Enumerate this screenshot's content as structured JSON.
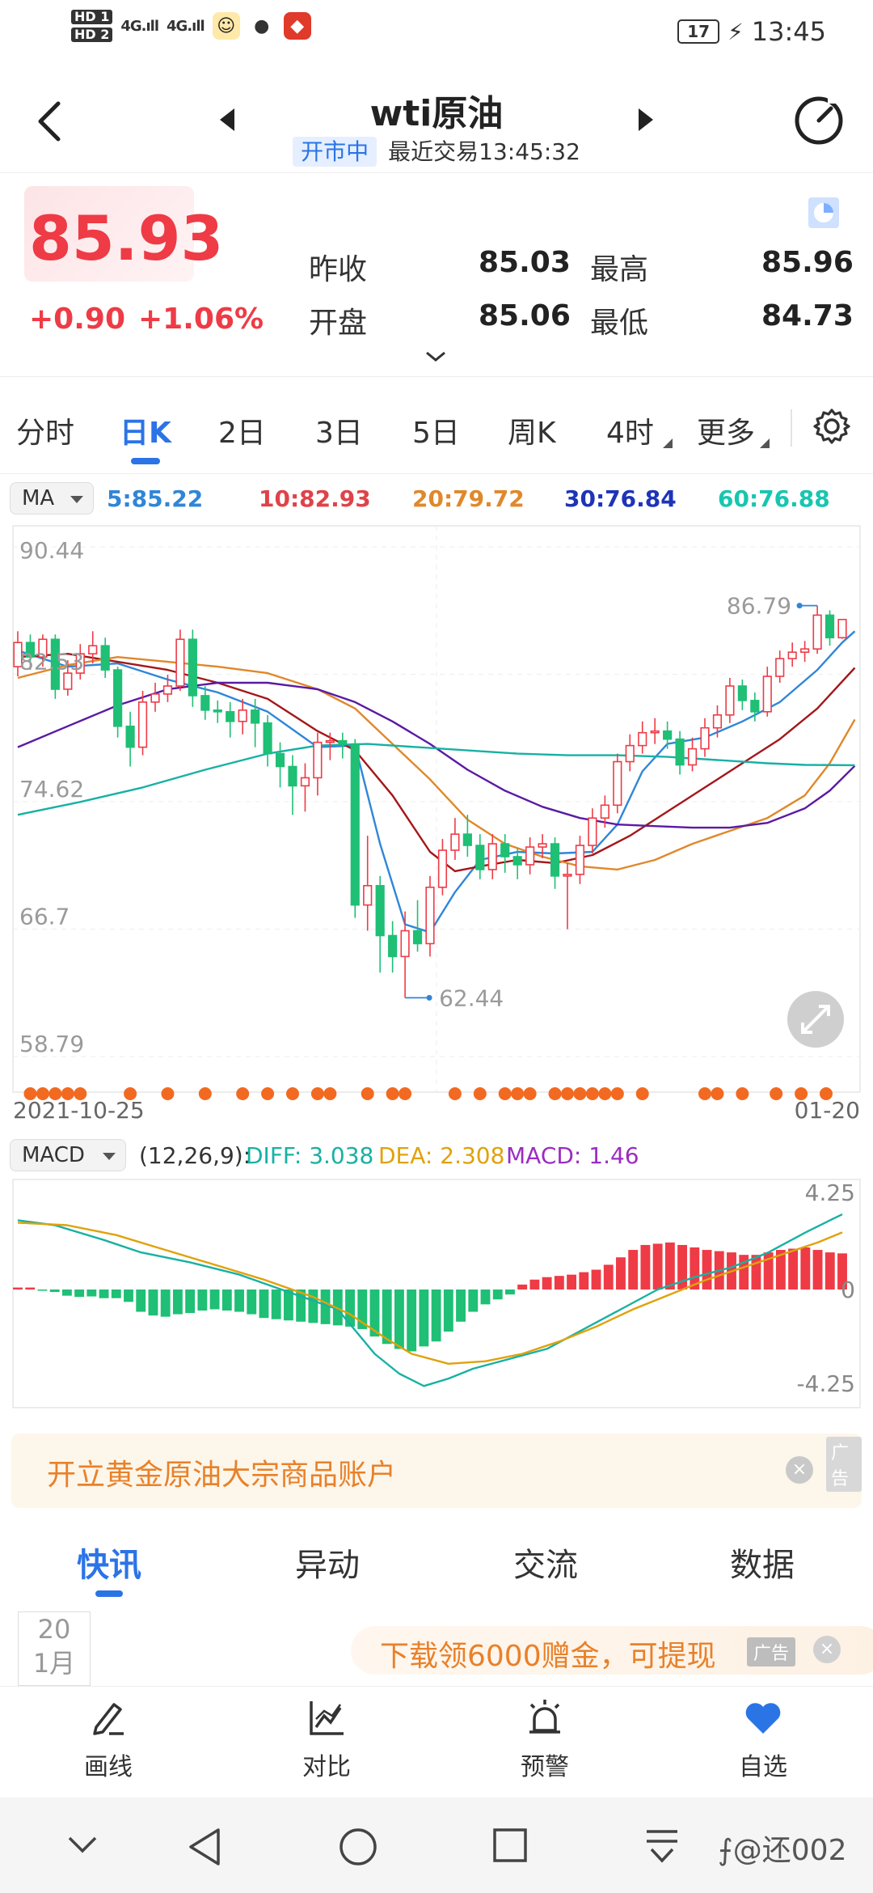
{
  "status_bar": {
    "sim1": "HD 1",
    "sim2": "HD 2",
    "signal1": "4G.ıll",
    "signal2": "4G.ıll",
    "battery": "17",
    "time": "13:45"
  },
  "header": {
    "title": "wti原油",
    "market_status": "开市中",
    "last_trade": "最近交易13:45:32"
  },
  "quote": {
    "price": "85.93",
    "change": "+0.90",
    "change_pct": "+1.06%",
    "prev_close_label": "昨收",
    "prev_close": "85.03",
    "high_label": "最高",
    "high": "85.96",
    "open_label": "开盘",
    "open": "85.06",
    "low_label": "最低",
    "low": "84.73"
  },
  "periods": [
    "分时",
    "日K",
    "2日",
    "3日",
    "5日",
    "周K",
    "4时",
    "更多"
  ],
  "active_period": "日K",
  "ma": {
    "selector": "MA",
    "ma5": "5:85.22",
    "ma10": "10:82.93",
    "ma20": "20:79.72",
    "ma30": "30:76.84",
    "ma60": "60:76.88"
  },
  "colors": {
    "up": "#ee3b46",
    "down": "#1fbf75",
    "ma5": "#2f86d8",
    "ma10": "#a3171a",
    "ma20": "#e0882a",
    "ma30": "#5a1aa3",
    "ma60": "#17b1a3",
    "accent": "#2b74e6",
    "event_dot": "#f26a21"
  },
  "chart_data": [
    {
      "type": "candlestick",
      "y_ticks": [
        "90.44",
        "82.53",
        "74.62",
        "66.7",
        "58.79"
      ],
      "ylim": [
        58.79,
        90.44
      ],
      "x_start": "2021-10-25",
      "x_end": "01-20",
      "max_label": "86.79",
      "min_label": "62.44",
      "candles": [
        {
          "o": 83.0,
          "c": 84.5,
          "h": 85.2,
          "l": 82.4
        },
        {
          "o": 84.5,
          "c": 83.6,
          "h": 85.0,
          "l": 82.8
        },
        {
          "o": 83.6,
          "c": 84.7,
          "h": 85.0,
          "l": 83.0
        },
        {
          "o": 84.7,
          "c": 81.6,
          "h": 85.0,
          "l": 81.0
        },
        {
          "o": 81.6,
          "c": 82.6,
          "h": 83.4,
          "l": 81.2
        },
        {
          "o": 82.6,
          "c": 83.8,
          "h": 84.4,
          "l": 82.2
        },
        {
          "o": 83.8,
          "c": 84.3,
          "h": 85.2,
          "l": 83.2
        },
        {
          "o": 84.3,
          "c": 82.8,
          "h": 84.8,
          "l": 82.3
        },
        {
          "o": 82.8,
          "c": 79.3,
          "h": 83.0,
          "l": 78.6
        },
        {
          "o": 79.3,
          "c": 78.0,
          "h": 80.2,
          "l": 76.8
        },
        {
          "o": 78.0,
          "c": 80.8,
          "h": 81.5,
          "l": 77.5
        },
        {
          "o": 80.8,
          "c": 81.3,
          "h": 82.0,
          "l": 80.2
        },
        {
          "o": 81.3,
          "c": 81.8,
          "h": 82.5,
          "l": 80.8
        },
        {
          "o": 81.8,
          "c": 84.7,
          "h": 85.3,
          "l": 81.5
        },
        {
          "o": 84.7,
          "c": 81.2,
          "h": 85.3,
          "l": 80.5
        },
        {
          "o": 81.2,
          "c": 80.3,
          "h": 81.8,
          "l": 79.7
        },
        {
          "o": 80.3,
          "c": 80.2,
          "h": 80.9,
          "l": 79.5
        },
        {
          "o": 80.2,
          "c": 79.6,
          "h": 80.8,
          "l": 78.6
        },
        {
          "o": 79.6,
          "c": 80.3,
          "h": 81.0,
          "l": 78.8
        },
        {
          "o": 80.3,
          "c": 79.5,
          "h": 81.0,
          "l": 78.0
        },
        {
          "o": 79.5,
          "c": 77.6,
          "h": 80.0,
          "l": 76.8
        },
        {
          "o": 77.6,
          "c": 76.8,
          "h": 78.3,
          "l": 75.5
        },
        {
          "o": 76.8,
          "c": 75.6,
          "h": 77.5,
          "l": 73.8
        },
        {
          "o": 75.6,
          "c": 76.1,
          "h": 77.0,
          "l": 74.0
        },
        {
          "o": 76.1,
          "c": 78.3,
          "h": 78.9,
          "l": 75.0
        },
        {
          "o": 78.3,
          "c": 78.4,
          "h": 78.9,
          "l": 77.2
        },
        {
          "o": 78.4,
          "c": 78.2,
          "h": 78.9,
          "l": 77.3
        },
        {
          "o": 78.2,
          "c": 68.2,
          "h": 78.5,
          "l": 67.4
        },
        {
          "o": 68.2,
          "c": 69.4,
          "h": 72.5,
          "l": 66.6
        },
        {
          "o": 69.4,
          "c": 66.3,
          "h": 70.0,
          "l": 64.0
        },
        {
          "o": 66.3,
          "c": 65.0,
          "h": 67.2,
          "l": 64.0
        },
        {
          "o": 65.0,
          "c": 66.6,
          "h": 67.8,
          "l": 62.44
        },
        {
          "o": 66.6,
          "c": 65.8,
          "h": 68.5,
          "l": 65.3
        },
        {
          "o": 65.8,
          "c": 69.3,
          "h": 70.0,
          "l": 65.0
        },
        {
          "o": 69.3,
          "c": 71.6,
          "h": 72.3,
          "l": 68.8
        },
        {
          "o": 71.6,
          "c": 72.6,
          "h": 73.6,
          "l": 71.0
        },
        {
          "o": 72.6,
          "c": 71.9,
          "h": 73.8,
          "l": 71.2
        },
        {
          "o": 71.9,
          "c": 70.4,
          "h": 72.6,
          "l": 69.8
        },
        {
          "o": 70.4,
          "c": 72.0,
          "h": 72.6,
          "l": 69.8
        },
        {
          "o": 72.0,
          "c": 71.2,
          "h": 72.6,
          "l": 70.2
        },
        {
          "o": 71.2,
          "c": 70.7,
          "h": 71.7,
          "l": 69.8
        },
        {
          "o": 70.7,
          "c": 71.8,
          "h": 72.4,
          "l": 70.1
        },
        {
          "o": 71.8,
          "c": 72.0,
          "h": 72.6,
          "l": 71.1
        },
        {
          "o": 72.0,
          "c": 70.0,
          "h": 72.4,
          "l": 69.2
        },
        {
          "o": 70.0,
          "c": 70.1,
          "h": 70.8,
          "l": 66.7
        },
        {
          "o": 70.1,
          "c": 71.9,
          "h": 72.5,
          "l": 69.5
        },
        {
          "o": 71.9,
          "c": 73.6,
          "h": 74.2,
          "l": 71.4
        },
        {
          "o": 73.6,
          "c": 74.4,
          "h": 75.0,
          "l": 73.0
        },
        {
          "o": 74.4,
          "c": 77.1,
          "h": 77.6,
          "l": 73.9
        },
        {
          "o": 77.1,
          "c": 78.1,
          "h": 78.8,
          "l": 76.5
        },
        {
          "o": 78.1,
          "c": 78.9,
          "h": 79.6,
          "l": 77.6
        },
        {
          "o": 78.9,
          "c": 79.0,
          "h": 79.8,
          "l": 78.2
        },
        {
          "o": 79.0,
          "c": 78.5,
          "h": 79.6,
          "l": 77.9
        },
        {
          "o": 78.5,
          "c": 76.9,
          "h": 79.0,
          "l": 76.3
        },
        {
          "o": 76.9,
          "c": 77.9,
          "h": 78.6,
          "l": 76.5
        },
        {
          "o": 77.9,
          "c": 79.2,
          "h": 79.8,
          "l": 77.4
        },
        {
          "o": 79.2,
          "c": 80.0,
          "h": 80.6,
          "l": 78.6
        },
        {
          "o": 80.0,
          "c": 81.8,
          "h": 82.3,
          "l": 79.5
        },
        {
          "o": 81.8,
          "c": 80.9,
          "h": 82.2,
          "l": 80.3
        },
        {
          "o": 80.9,
          "c": 80.2,
          "h": 81.4,
          "l": 79.6
        },
        {
          "o": 80.2,
          "c": 82.4,
          "h": 83.0,
          "l": 79.9
        },
        {
          "o": 82.4,
          "c": 83.5,
          "h": 84.0,
          "l": 82.0
        },
        {
          "o": 83.5,
          "c": 83.9,
          "h": 84.5,
          "l": 83.0
        },
        {
          "o": 83.9,
          "c": 84.1,
          "h": 84.6,
          "l": 83.3
        },
        {
          "o": 84.1,
          "c": 86.2,
          "h": 86.79,
          "l": 83.8
        },
        {
          "o": 86.2,
          "c": 84.8,
          "h": 86.5,
          "l": 84.3
        },
        {
          "o": 84.8,
          "c": 85.93,
          "h": 85.96,
          "l": 84.73
        }
      ],
      "ma_lines": {
        "ma5": [
          [
            0,
            84.0
          ],
          [
            4,
            83.0
          ],
          [
            8,
            83.2
          ],
          [
            12,
            82.2
          ],
          [
            16,
            81.4
          ],
          [
            20,
            80.2
          ],
          [
            24,
            78.0
          ],
          [
            27,
            78.1
          ],
          [
            29,
            72.0
          ],
          [
            31,
            67.0
          ],
          [
            33,
            66.5
          ],
          [
            35,
            69.0
          ],
          [
            37,
            71.0
          ],
          [
            40,
            71.5
          ],
          [
            43,
            71.4
          ],
          [
            46,
            71.5
          ],
          [
            48,
            73.2
          ],
          [
            50,
            76.5
          ],
          [
            52,
            78.2
          ],
          [
            55,
            78.6
          ],
          [
            58,
            79.6
          ],
          [
            61,
            80.8
          ],
          [
            64,
            82.8
          ],
          [
            66,
            84.5
          ],
          [
            67,
            85.2
          ]
        ],
        "ma10": [
          [
            0,
            83.6
          ],
          [
            4,
            83.8
          ],
          [
            8,
            83.3
          ],
          [
            12,
            82.8
          ],
          [
            16,
            82.0
          ],
          [
            20,
            81.0
          ],
          [
            24,
            79.0
          ],
          [
            27,
            77.8
          ],
          [
            30,
            75.0
          ],
          [
            33,
            71.5
          ],
          [
            35,
            70.3
          ],
          [
            37,
            70.6
          ],
          [
            40,
            71.0
          ],
          [
            43,
            70.8
          ],
          [
            46,
            71.3
          ],
          [
            49,
            72.5
          ],
          [
            52,
            74.0
          ],
          [
            55,
            75.5
          ],
          [
            58,
            77.0
          ],
          [
            61,
            78.5
          ],
          [
            64,
            80.4
          ],
          [
            67,
            82.93
          ]
        ],
        "ma20": [
          [
            0,
            82.3
          ],
          [
            4,
            83.1
          ],
          [
            8,
            83.6
          ],
          [
            12,
            83.3
          ],
          [
            16,
            83.0
          ],
          [
            20,
            82.6
          ],
          [
            24,
            81.6
          ],
          [
            27,
            80.4
          ],
          [
            30,
            78.2
          ],
          [
            33,
            76.0
          ],
          [
            36,
            73.5
          ],
          [
            39,
            72.0
          ],
          [
            42,
            71.2
          ],
          [
            45,
            70.6
          ],
          [
            48,
            70.4
          ],
          [
            51,
            71.0
          ],
          [
            54,
            72.0
          ],
          [
            57,
            72.8
          ],
          [
            60,
            73.6
          ],
          [
            63,
            75.0
          ],
          [
            65,
            77.0
          ],
          [
            67,
            79.72
          ]
        ],
        "ma30": [
          [
            0,
            78.0
          ],
          [
            4,
            79.3
          ],
          [
            8,
            80.6
          ],
          [
            12,
            81.6
          ],
          [
            16,
            82.0
          ],
          [
            20,
            82.0
          ],
          [
            24,
            81.6
          ],
          [
            27,
            80.8
          ],
          [
            30,
            79.6
          ],
          [
            33,
            78.2
          ],
          [
            36,
            76.6
          ],
          [
            39,
            75.3
          ],
          [
            42,
            74.3
          ],
          [
            45,
            73.6
          ],
          [
            48,
            73.2
          ],
          [
            51,
            73.1
          ],
          [
            54,
            73.0
          ],
          [
            57,
            73.0
          ],
          [
            60,
            73.3
          ],
          [
            63,
            74.2
          ],
          [
            65,
            75.3
          ],
          [
            67,
            76.84
          ]
        ],
        "ma60": [
          [
            0,
            73.8
          ],
          [
            5,
            74.6
          ],
          [
            10,
            75.5
          ],
          [
            15,
            76.6
          ],
          [
            20,
            77.6
          ],
          [
            24,
            78.1
          ],
          [
            28,
            78.2
          ],
          [
            32,
            78.0
          ],
          [
            36,
            77.8
          ],
          [
            40,
            77.6
          ],
          [
            44,
            77.5
          ],
          [
            48,
            77.5
          ],
          [
            52,
            77.4
          ],
          [
            56,
            77.2
          ],
          [
            60,
            77.0
          ],
          [
            63,
            76.9
          ],
          [
            67,
            76.88
          ]
        ]
      },
      "events": [
        1,
        2,
        3,
        4,
        5,
        9,
        12,
        15,
        18,
        20,
        22,
        24,
        25,
        28,
        30,
        31,
        35,
        37,
        39,
        40,
        41,
        43,
        44,
        45,
        46,
        47,
        48,
        50,
        55,
        56,
        58
      ]
    },
    {
      "type": "macd",
      "params": "(12,26,9):",
      "diff": "DIFF: 3.038",
      "dea": "DEA: 2.308",
      "macd": "MACD: 1.46",
      "y_ticks": [
        "4.25",
        "0",
        "-4.25"
      ],
      "ylim": [
        -4.25,
        4.25
      ],
      "histogram": [
        0.08,
        0.08,
        -0.05,
        -0.1,
        -0.25,
        -0.3,
        -0.28,
        -0.35,
        -0.35,
        -0.5,
        -0.9,
        -1.05,
        -1.1,
        -1.0,
        -0.95,
        -0.85,
        -0.8,
        -0.85,
        -0.9,
        -1.0,
        -1.15,
        -1.2,
        -1.25,
        -1.3,
        -1.35,
        -1.4,
        -1.45,
        -1.5,
        -1.6,
        -1.9,
        -2.2,
        -2.4,
        -2.5,
        -2.3,
        -2.1,
        -1.7,
        -1.3,
        -0.9,
        -0.6,
        -0.4,
        -0.2,
        0.2,
        0.4,
        0.5,
        0.55,
        0.6,
        0.7,
        0.8,
        1.0,
        1.3,
        1.6,
        1.8,
        1.85,
        1.9,
        1.8,
        1.7,
        1.6,
        1.55,
        1.5,
        1.4,
        1.4,
        1.5,
        1.6,
        1.65,
        1.7,
        1.6,
        1.5,
        1.46
      ],
      "diff_line": [
        [
          0,
          2.8
        ],
        [
          3,
          2.6
        ],
        [
          7,
          2.0
        ],
        [
          10,
          1.5
        ],
        [
          14,
          1.1
        ],
        [
          18,
          0.6
        ],
        [
          22,
          -0.1
        ],
        [
          26,
          -0.8
        ],
        [
          29,
          -2.6
        ],
        [
          31,
          -3.4
        ],
        [
          33,
          -3.9
        ],
        [
          35,
          -3.6
        ],
        [
          37,
          -3.2
        ],
        [
          40,
          -2.8
        ],
        [
          43,
          -2.4
        ],
        [
          46,
          -1.6
        ],
        [
          49,
          -0.8
        ],
        [
          52,
          0.0
        ],
        [
          55,
          0.5
        ],
        [
          58,
          0.9
        ],
        [
          61,
          1.5
        ],
        [
          64,
          2.3
        ],
        [
          66,
          2.8
        ],
        [
          67,
          3.038
        ]
      ],
      "dea_line": [
        [
          0,
          2.7
        ],
        [
          4,
          2.6
        ],
        [
          8,
          2.2
        ],
        [
          12,
          1.6
        ],
        [
          16,
          1.0
        ],
        [
          20,
          0.4
        ],
        [
          24,
          -0.3
        ],
        [
          27,
          -1.0
        ],
        [
          30,
          -2.0
        ],
        [
          32,
          -2.6
        ],
        [
          35,
          -3.0
        ],
        [
          38,
          -2.9
        ],
        [
          41,
          -2.6
        ],
        [
          44,
          -2.1
        ],
        [
          47,
          -1.5
        ],
        [
          50,
          -0.8
        ],
        [
          53,
          -0.2
        ],
        [
          56,
          0.4
        ],
        [
          59,
          0.9
        ],
        [
          62,
          1.4
        ],
        [
          65,
          1.9
        ],
        [
          67,
          2.308
        ]
      ]
    }
  ],
  "ad_banner": {
    "text": "开立黄金原油大宗商品账户",
    "tag": "广告",
    "close": "×"
  },
  "news_tabs": [
    "快讯",
    "异动",
    "交流",
    "数据"
  ],
  "active_news_tab": "快讯",
  "news_date": {
    "day": "20",
    "month": "1月"
  },
  "ad2": {
    "text": "下载领6000赠金，可提现",
    "tag": "广告",
    "close": "×"
  },
  "toolbar": [
    {
      "label": "画线",
      "icon": "pen-icon"
    },
    {
      "label": "对比",
      "icon": "compare-chart-icon"
    },
    {
      "label": "预警",
      "icon": "alarm-icon"
    },
    {
      "label": "自选",
      "icon": "heart-icon"
    }
  ],
  "watermark": "⨍@还002"
}
